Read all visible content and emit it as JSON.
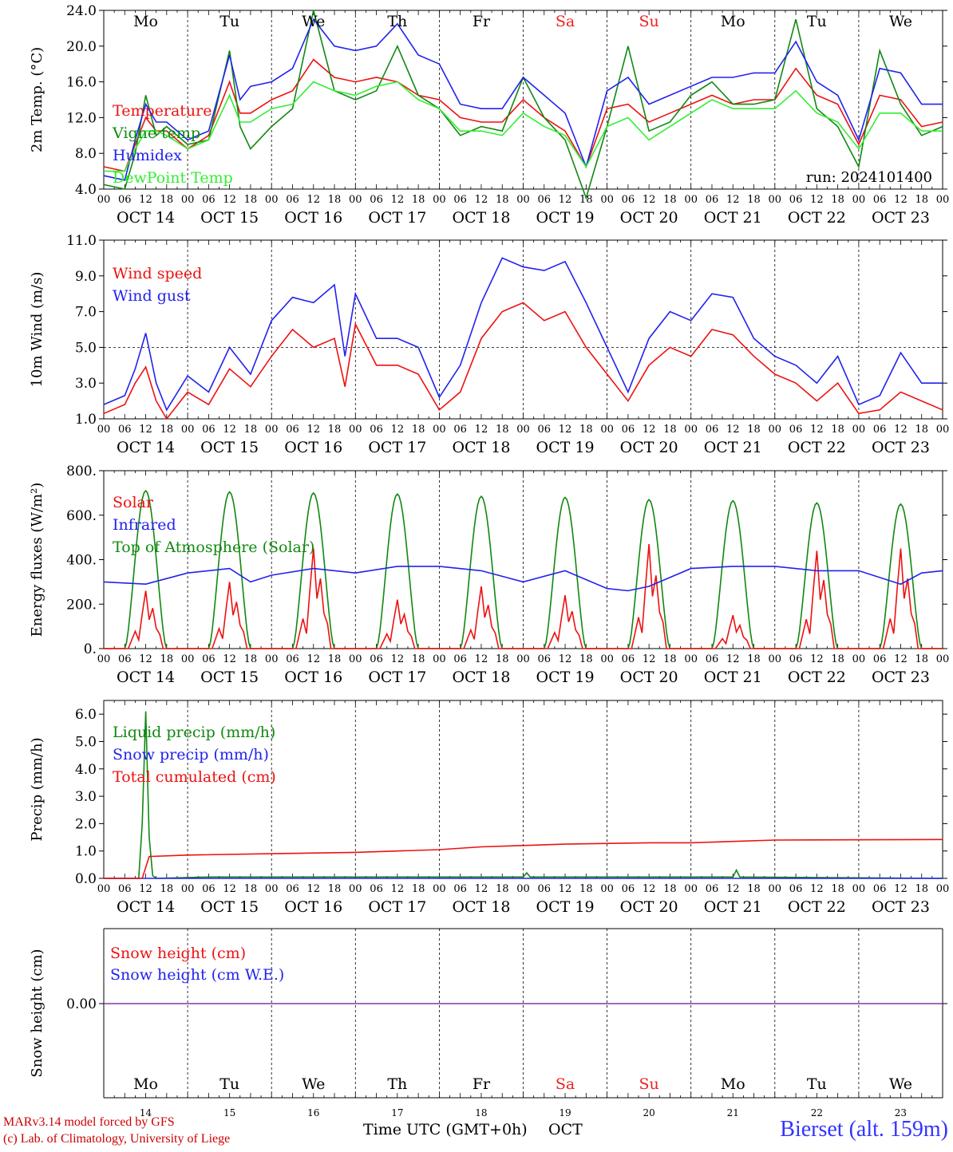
{
  "colors": {
    "red": "#ee1111",
    "darkgreen": "#118811",
    "blue": "#2222ee",
    "lightgreen": "#33ee33",
    "purple": "#8833aa",
    "weekend": "#ee2222"
  },
  "days": {
    "labels": [
      "Mo",
      "Tu",
      "We",
      "Th",
      "Fr",
      "Sa",
      "Su",
      "Mo",
      "Tu",
      "We"
    ],
    "weekend": [
      false,
      false,
      false,
      false,
      false,
      true,
      true,
      false,
      false,
      false
    ],
    "dates": [
      "OCT 14",
      "OCT 15",
      "OCT 16",
      "OCT 17",
      "OCT 18",
      "OCT 19",
      "OCT 20",
      "OCT 21",
      "OCT 22",
      "OCT 23"
    ],
    "numbers": [
      "14",
      "15",
      "16",
      "17",
      "18",
      "19",
      "20",
      "21",
      "22",
      "23"
    ],
    "hour_ticks": [
      "00",
      "06",
      "12",
      "18"
    ],
    "end_tick": "00"
  },
  "footer": {
    "credit_line1": "MARv3.14 model forced by GFS",
    "credit_line2": "(c) Lab. of Climatology, University of Liege",
    "xlabel": "Time UTC (GMT+0h)",
    "month": "OCT",
    "station": "Bierset (alt. 159m)"
  },
  "chart_data": [
    {
      "type": "line",
      "ylabel": "2m Temp. (°C)",
      "ylim": [
        4.0,
        24.0
      ],
      "yticks": [
        "4.0",
        "8.0",
        "12.0",
        "16.0",
        "20.0",
        "24.0"
      ],
      "run_label": "run: 2024101400",
      "x_unit": "hours since OCT 14 00 UTC",
      "x": [
        0,
        6,
        9,
        12,
        15,
        18,
        24,
        30,
        36,
        39,
        42,
        48,
        54,
        60,
        66,
        72,
        78,
        84,
        90,
        96,
        102,
        108,
        114,
        120,
        126,
        132,
        138,
        144,
        150,
        156,
        162,
        168,
        174,
        180,
        186,
        192,
        198,
        204,
        210,
        216,
        222,
        228,
        234,
        240
      ],
      "series": [
        {
          "name": "Temperature",
          "color": "red",
          "values": [
            6.5,
            6.0,
            9.0,
            12.0,
            10.5,
            10.5,
            8.5,
            10.0,
            16.0,
            12.5,
            12.5,
            14.0,
            15.0,
            18.5,
            16.5,
            16.0,
            16.5,
            16.0,
            14.5,
            14.0,
            12.0,
            11.5,
            11.5,
            14.0,
            12.0,
            10.5,
            6.5,
            13.0,
            13.5,
            11.5,
            12.5,
            13.5,
            14.5,
            13.5,
            14.0,
            14.0,
            17.5,
            14.5,
            13.5,
            9.0,
            14.5,
            14.0,
            11.0,
            11.5
          ]
        },
        {
          "name": "Vigne temp",
          "color": "darkgreen",
          "values": [
            4.5,
            4.0,
            8.0,
            14.5,
            10.0,
            11.0,
            9.0,
            9.5,
            19.5,
            11.0,
            8.5,
            11.0,
            13.0,
            24.0,
            15.0,
            14.0,
            15.0,
            20.0,
            14.5,
            13.0,
            10.0,
            11.0,
            10.5,
            16.5,
            12.0,
            9.5,
            3.0,
            11.0,
            20.0,
            10.5,
            11.5,
            14.5,
            16.0,
            13.5,
            13.5,
            14.0,
            23.0,
            13.0,
            11.0,
            6.5,
            19.5,
            13.5,
            10.0,
            11.0
          ]
        },
        {
          "name": "Humidex",
          "color": "blue",
          "values": [
            5.5,
            5.0,
            9.5,
            13.5,
            11.5,
            11.5,
            9.5,
            10.5,
            19.0,
            14.0,
            15.5,
            16.0,
            17.5,
            23.0,
            20.0,
            19.5,
            20.0,
            22.5,
            19.0,
            18.0,
            13.5,
            13.0,
            13.0,
            16.5,
            14.5,
            12.5,
            6.5,
            15.0,
            16.5,
            13.5,
            14.5,
            15.5,
            16.5,
            16.5,
            17.0,
            17.0,
            20.5,
            16.0,
            14.5,
            9.5,
            17.5,
            17.0,
            13.5,
            13.5
          ]
        },
        {
          "name": "DewPoint Temp",
          "color": "lightgreen",
          "values": [
            6.0,
            6.0,
            8.5,
            10.5,
            10.5,
            10.0,
            8.5,
            9.5,
            14.5,
            11.5,
            11.5,
            13.0,
            13.5,
            16.0,
            15.0,
            14.5,
            15.5,
            16.0,
            14.0,
            13.0,
            10.5,
            10.5,
            10.0,
            12.5,
            11.0,
            10.0,
            6.5,
            11.0,
            12.0,
            9.5,
            11.0,
            12.5,
            14.0,
            13.0,
            13.0,
            13.0,
            15.0,
            12.5,
            11.5,
            8.5,
            12.5,
            12.5,
            10.5,
            10.5
          ]
        }
      ]
    },
    {
      "type": "line",
      "ylabel": "10m Wind (m/s)",
      "ylim": [
        1.0,
        11.0
      ],
      "yticks": [
        "1.0",
        "3.0",
        "5.0",
        "7.0",
        "9.0",
        "11.0"
      ],
      "reference_line": 5.0,
      "x_unit": "hours since OCT 14 00 UTC",
      "x": [
        0,
        6,
        9,
        12,
        15,
        18,
        24,
        30,
        36,
        42,
        48,
        54,
        60,
        66,
        69,
        72,
        78,
        84,
        90,
        96,
        102,
        108,
        114,
        120,
        126,
        132,
        138,
        144,
        150,
        156,
        162,
        168,
        174,
        180,
        186,
        192,
        198,
        204,
        210,
        216,
        222,
        228,
        234,
        240
      ],
      "series": [
        {
          "name": "Wind speed",
          "color": "red",
          "values": [
            1.3,
            1.8,
            3.0,
            3.9,
            2.0,
            1.0,
            2.5,
            1.8,
            3.8,
            2.8,
            4.5,
            6.0,
            5.0,
            5.5,
            2.8,
            6.3,
            4.0,
            4.0,
            3.5,
            1.5,
            2.5,
            5.5,
            7.0,
            7.5,
            6.5,
            7.0,
            5.0,
            3.5,
            2.0,
            4.0,
            5.0,
            4.5,
            6.0,
            5.7,
            4.5,
            3.5,
            3.0,
            2.0,
            3.0,
            1.3,
            1.5,
            2.5,
            2.0,
            1.5
          ]
        },
        {
          "name": "Wind gust",
          "color": "blue",
          "values": [
            1.8,
            2.3,
            3.8,
            5.8,
            3.0,
            1.5,
            3.4,
            2.5,
            5.0,
            3.5,
            6.5,
            7.8,
            7.5,
            8.5,
            4.5,
            8.0,
            5.5,
            5.5,
            5.0,
            2.2,
            4.0,
            7.5,
            10.0,
            9.5,
            9.3,
            9.8,
            7.5,
            5.0,
            2.5,
            5.5,
            7.0,
            6.5,
            8.0,
            7.8,
            5.5,
            4.5,
            4.0,
            3.0,
            4.5,
            1.8,
            2.3,
            4.7,
            3.0,
            3.0
          ]
        }
      ]
    },
    {
      "type": "line",
      "ylabel": "Energy fluxes (W/m²)",
      "ylim": [
        0,
        800
      ],
      "yticks": [
        "0.",
        "200.",
        "400.",
        "600.",
        "800."
      ],
      "x_unit": "hours since OCT 14 00 UTC",
      "series": [
        {
          "name": "Solar",
          "color": "red",
          "daily_peaks": [
            260,
            300,
            450,
            220,
            280,
            240,
            470,
            150,
            440,
            450
          ]
        },
        {
          "name": "Infrared",
          "color": "blue",
          "x": [
            0,
            12,
            24,
            36,
            42,
            48,
            60,
            72,
            84,
            96,
            108,
            120,
            132,
            144,
            150,
            156,
            168,
            180,
            192,
            204,
            216,
            228,
            234,
            240
          ],
          "values": [
            300,
            290,
            340,
            360,
            300,
            330,
            360,
            340,
            370,
            370,
            350,
            300,
            350,
            270,
            260,
            280,
            360,
            370,
            370,
            350,
            350,
            290,
            340,
            350
          ]
        },
        {
          "name": "Top of Atmosphere (Solar)",
          "color": "darkgreen",
          "daily_peaks": [
            710,
            705,
            700,
            695,
            685,
            680,
            670,
            665,
            655,
            650
          ]
        }
      ]
    },
    {
      "type": "line",
      "ylabel": "Precip (mm/h)",
      "ylim": [
        0.0,
        6.5
      ],
      "yticks": [
        "0.0",
        "1.0",
        "2.0",
        "3.0",
        "4.0",
        "5.0",
        "6.0"
      ],
      "x_unit": "hours since OCT 14 00 UTC",
      "series": [
        {
          "name": "Liquid precip (mm/h)",
          "color": "darkgreen",
          "x": [
            0,
            10,
            11,
            12,
            13,
            14,
            15,
            30,
            60,
            90,
            120,
            121,
            122,
            180,
            181,
            182,
            240
          ],
          "values": [
            0,
            0,
            2.0,
            6.1,
            1.5,
            0.1,
            0,
            0.05,
            0.05,
            0.05,
            0.05,
            0.2,
            0.05,
            0.05,
            0.3,
            0.05,
            0
          ]
        },
        {
          "name": "Snow precip (mm/h)",
          "color": "blue",
          "x": [
            0,
            240
          ],
          "values": [
            0,
            0
          ]
        },
        {
          "name": "Total cumulated (cm)",
          "color": "red",
          "x": [
            0,
            11,
            13,
            24,
            48,
            72,
            84,
            96,
            108,
            120,
            132,
            156,
            168,
            180,
            192,
            240
          ],
          "values": [
            0,
            0,
            0.8,
            0.85,
            0.9,
            0.95,
            1.0,
            1.05,
            1.15,
            1.2,
            1.25,
            1.3,
            1.3,
            1.35,
            1.4,
            1.42
          ]
        }
      ]
    },
    {
      "type": "line",
      "ylabel": "Snow height (cm)",
      "yticks": [
        "0.00"
      ],
      "x_unit": "hours since OCT 14 00 UTC",
      "series": [
        {
          "name": "Snow height (cm)",
          "color": "red",
          "x": [
            0,
            240
          ],
          "values": [
            0,
            0
          ]
        },
        {
          "name": "Snow height (cm W.E.)",
          "color": "blue",
          "x": [
            0,
            240
          ],
          "values": [
            0,
            0
          ]
        }
      ]
    }
  ]
}
